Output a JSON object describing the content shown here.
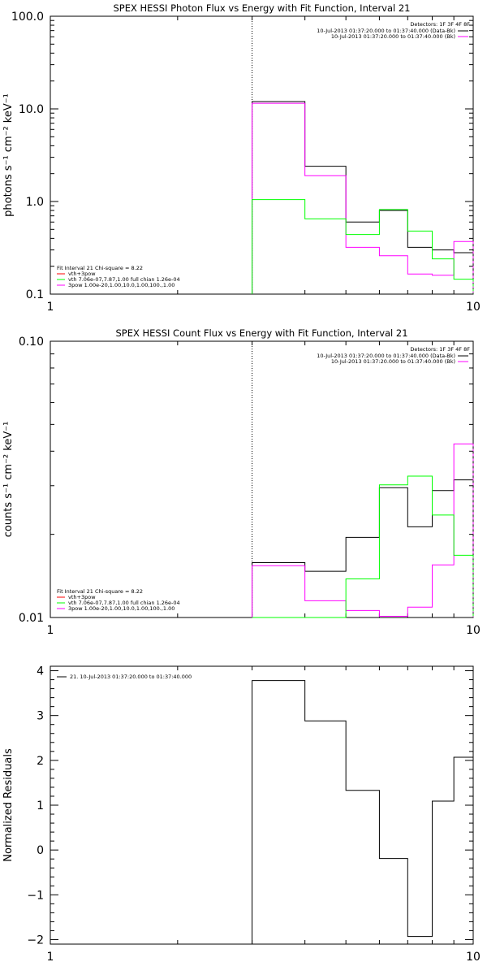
{
  "colors": {
    "black": "#000000",
    "magenta": "#ff00ff",
    "green": "#00ff00",
    "red": "#ff0000"
  },
  "chart_data": [
    {
      "type": "line",
      "title": "SPEX HESSI Photon Flux vs Energy with Fit Function, Interval 21",
      "xlabel": "",
      "ylabel": "photons s⁻¹ cm⁻² keV⁻¹",
      "xscale": "log",
      "yscale": "log",
      "xlim": [
        1,
        10
      ],
      "ylim": [
        0.1,
        100
      ],
      "xticks": [
        {
          "v": 1,
          "label": "1"
        },
        {
          "v": 10,
          "label": "10"
        }
      ],
      "yticks": [
        {
          "v": 0.1,
          "label": "0.1"
        },
        {
          "v": 1,
          "label": "1.0"
        },
        {
          "v": 10,
          "label": "10.0"
        },
        {
          "v": 100,
          "label": "100.0"
        }
      ],
      "vline": 3.0,
      "bin_edges": [
        3.0,
        4.0,
        5.0,
        6.0,
        7.0,
        8.0,
        9.0,
        10.0
      ],
      "series": [
        {
          "name": "10-Jul-2013 01:37:20.000 to 01:37:40.000 (Data-Bk)",
          "color": "#000000",
          "values": [
            12.0,
            2.4,
            0.6,
            0.8,
            0.32,
            0.3,
            0.28
          ]
        },
        {
          "name": "10-Jul-2013 01:37:20.000 to 01:37:40.000 (Bk)",
          "color": "#ff00ff",
          "values": [
            11.5,
            1.9,
            0.32,
            0.26,
            0.165,
            0.16,
            0.37
          ]
        },
        {
          "name": "vth 7.06e-07,7.87,1.00  full chian 1.26e-04",
          "color": "#00ff00",
          "values": [
            1.05,
            0.65,
            0.44,
            0.82,
            0.48,
            0.24,
            0.145
          ]
        }
      ],
      "detectors": "Detectors: 1F 3F 4F 8F",
      "legend_top": [
        {
          "label": "10-Jul-2013 01:37:20.000 to 01:37:40.000 (Data-Bk)",
          "color": "#000000"
        },
        {
          "label": "10-Jul-2013 01:37:20.000 to 01:37:40.000 (Bk)",
          "color": "#ff00ff"
        }
      ],
      "fit_title": "Fit Interval 21    Chi-square = 8.22",
      "legend_bottom": [
        {
          "label": "vth+3pow",
          "color": "#ff0000"
        },
        {
          "label": "vth 7.06e-07,7.87,1.00  full chian 1.26e-04",
          "color": "#00ff00"
        },
        {
          "label": "3pow 1.00e-20,1.00,10.0,1.00,100.,1.00",
          "color": "#ff00ff"
        }
      ]
    },
    {
      "type": "line",
      "title": "SPEX HESSI Count Flux vs Energy with Fit Function, Interval 21",
      "xlabel": "",
      "ylabel": "counts s⁻¹ cm⁻² keV⁻¹",
      "xscale": "log",
      "yscale": "log",
      "xlim": [
        1,
        10
      ],
      "ylim": [
        0.01,
        0.1
      ],
      "xticks": [
        {
          "v": 1,
          "label": "1"
        },
        {
          "v": 10,
          "label": "10"
        }
      ],
      "yticks": [
        {
          "v": 0.01,
          "label": "0.01"
        },
        {
          "v": 0.1,
          "label": "0.10"
        }
      ],
      "vline": 3.0,
      "bin_edges": [
        3.0,
        4.0,
        5.0,
        6.0,
        7.0,
        8.0,
        9.0,
        10.0
      ],
      "series": [
        {
          "name": "10-Jul-2013 01:37:20.000 to 01:37:40.000 (Data-Bk)",
          "color": "#000000",
          "values": [
            0.0158,
            0.0147,
            0.0195,
            0.0295,
            0.0213,
            0.0288,
            0.0315
          ]
        },
        {
          "name": "10-Jul-2013 01:37:20.000 to 01:37:40.000 (Bk)",
          "color": "#ff00ff",
          "values": [
            0.0154,
            0.0115,
            0.0106,
            0.0101,
            0.0109,
            0.0155,
            0.0425
          ]
        },
        {
          "name": "vth 7.06e-07,7.87,1.00  full chian 1.26e-04",
          "color": "#00ff00",
          "values": [
            0.0,
            0.0,
            0.0138,
            0.0302,
            0.0325,
            0.0235,
            0.0168
          ]
        }
      ],
      "detectors": "Detectors: 1F 3F 4F 8F",
      "legend_top": [
        {
          "label": "10-Jul-2013 01:37:20.000 to 01:37:40.000 (Data-Bk)",
          "color": "#000000"
        },
        {
          "label": "10-Jul-2013 01:37:20.000 to 01:37:40.000 (Bk)",
          "color": "#ff00ff"
        }
      ],
      "fit_title": "Fit Interval 21    Chi-square = 8.22",
      "legend_bottom": [
        {
          "label": "vth+3pow",
          "color": "#ff0000"
        },
        {
          "label": "vth 7.06e-07,7.87,1.00  full chian 1.26e-04",
          "color": "#00ff00"
        },
        {
          "label": "3pow 1.00e-20,1.00,10.0,1.00,100.,1.00",
          "color": "#ff00ff"
        }
      ]
    },
    {
      "type": "line",
      "title": "",
      "xlabel": "",
      "ylabel": "Normalized Residuals",
      "xscale": "log",
      "yscale": "linear",
      "xlim": [
        1,
        10
      ],
      "ylim": [
        -2.1,
        4.1
      ],
      "xticks": [
        {
          "v": 1,
          "label": "1"
        },
        {
          "v": 10,
          "label": "10"
        }
      ],
      "yticks": [
        {
          "v": -2,
          "label": "−2"
        },
        {
          "v": -1,
          "label": "−1"
        },
        {
          "v": 0,
          "label": "0"
        },
        {
          "v": 1,
          "label": "1"
        },
        {
          "v": 2,
          "label": "2"
        },
        {
          "v": 3,
          "label": "3"
        },
        {
          "v": 4,
          "label": "4"
        }
      ],
      "bin_edges": [
        3.0,
        4.0,
        5.0,
        6.0,
        7.0,
        8.0,
        9.0,
        10.0
      ],
      "series": [
        {
          "name": "21. 10-Jul-2013 01:37:20.000 to 01:37:40.000",
          "color": "#000000",
          "values": [
            3.78,
            2.88,
            1.33,
            -0.19,
            -1.93,
            1.09,
            2.07
          ]
        }
      ],
      "legend_top": [
        {
          "label": "21. 10-Jul-2013 01:37:20.000 to 01:37:40.000",
          "color": "#000000"
        }
      ]
    }
  ]
}
